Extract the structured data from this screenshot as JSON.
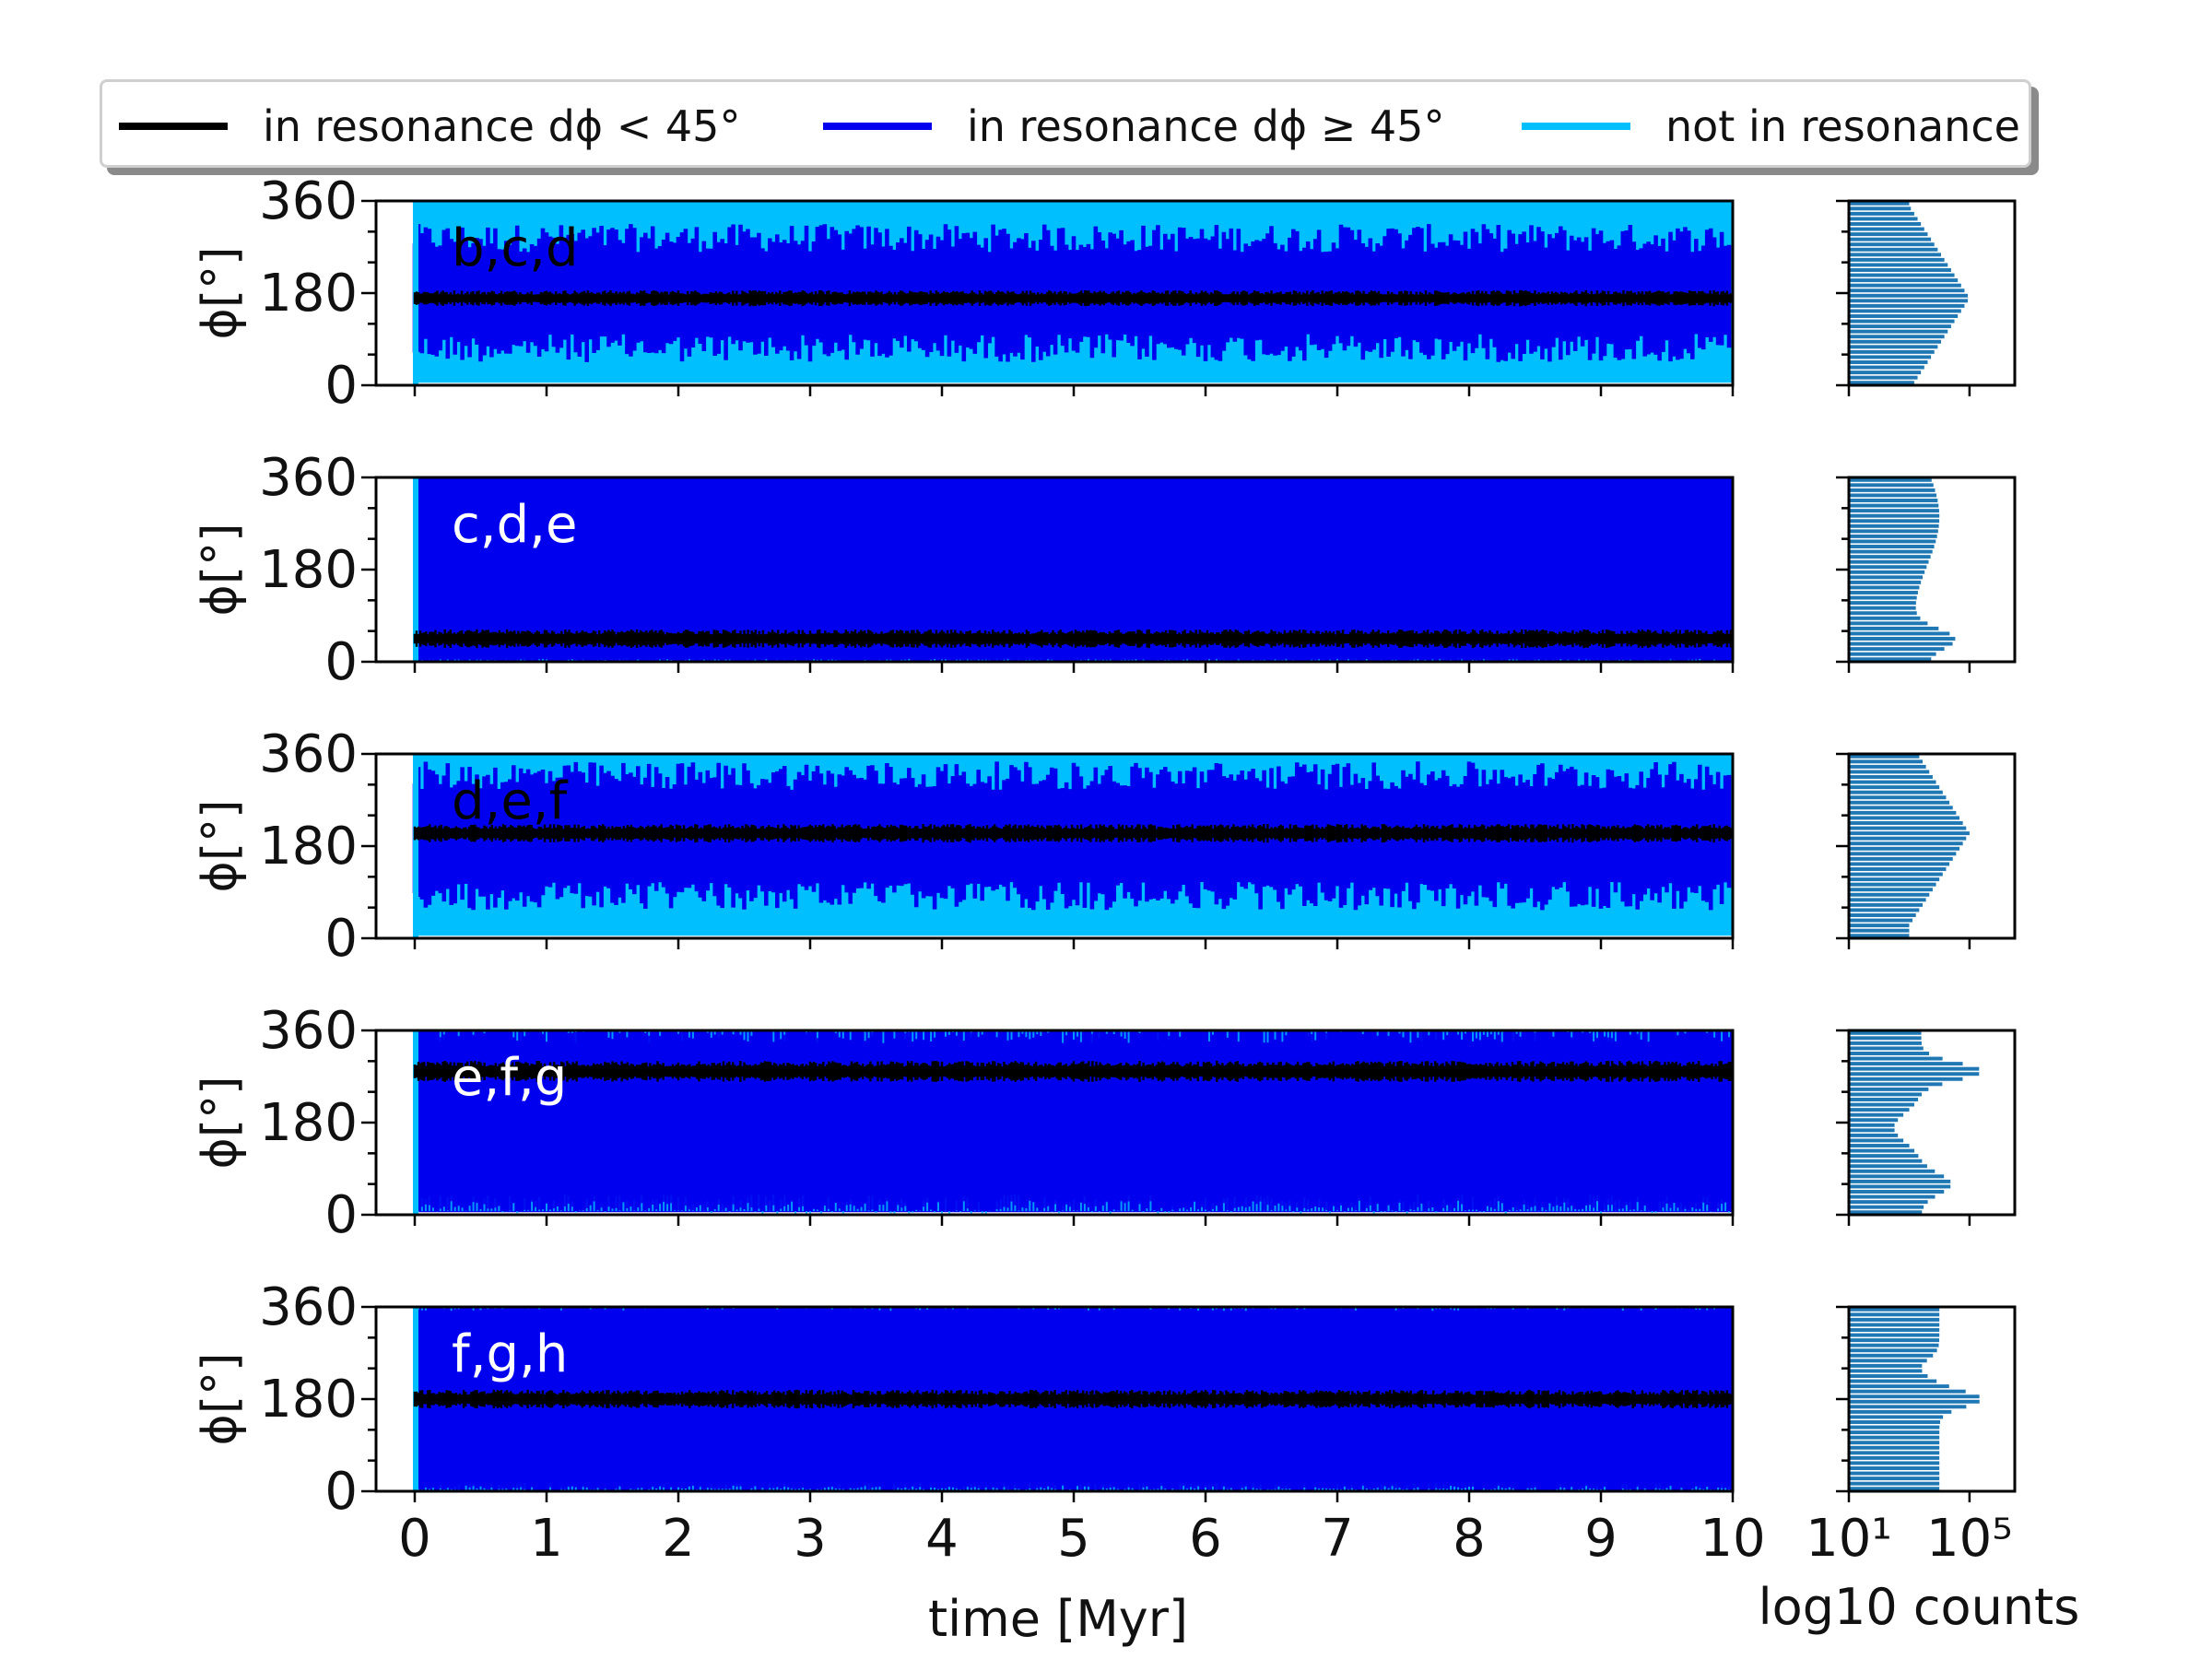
{
  "legend": {
    "items": [
      {
        "label": "in resonance dϕ < 45°",
        "color": "#000000"
      },
      {
        "label": "in resonance dϕ ≥ 45°",
        "color": "#0000ee"
      },
      {
        "label": "not in resonance",
        "color": "#00bfff"
      }
    ]
  },
  "chart_data": {
    "type": "line",
    "xlabel": "time [Myr]",
    "ylabel": "ϕ[°]",
    "xlim": [
      0,
      10
    ],
    "ylim": [
      0,
      360
    ],
    "xticks": [
      "0",
      "1",
      "2",
      "3",
      "4",
      "5",
      "6",
      "7",
      "8",
      "9",
      "10"
    ],
    "yticks": [
      "0",
      "180",
      "360"
    ],
    "hist_xlabel": "log10 counts",
    "hist_xticks": [
      "10¹",
      "10⁵"
    ],
    "hist_xscale": "log",
    "colors": {
      "in_resonance_small": "#000000",
      "in_resonance_large": "#0000ee",
      "not_in_resonance": "#00bfff",
      "histogram": "#1f77b4"
    },
    "panels": [
      {
        "label": "b,c,d",
        "label_color": "#000000",
        "center": 170,
        "black_halfwidth": 12,
        "blue_low": 100,
        "blue_high": 260,
        "cyan_low": 5,
        "cyan_high": 360,
        "background": "cyan"
      },
      {
        "label": "c,d,e",
        "label_color": "#ffffff",
        "center": 45,
        "black_halfwidth": 14,
        "blue_low": 5,
        "blue_high": 360,
        "cyan_low": 0,
        "cyan_high": 360,
        "background": "blue"
      },
      {
        "label": "d,e,f",
        "label_color": "#000000",
        "center": 205,
        "black_halfwidth": 14,
        "blue_low": 110,
        "blue_high": 290,
        "cyan_low": 5,
        "cyan_high": 360,
        "background": "cyan"
      },
      {
        "label": "e,f,g",
        "label_color": "#ffffff",
        "center": 280,
        "black_halfwidth": 16,
        "blue_low": 25,
        "blue_high": 310,
        "cyan_low": 5,
        "cyan_high": 360,
        "background": "blue"
      },
      {
        "label": "f,g,h",
        "label_color": "#ffffff",
        "center": 180,
        "black_halfwidth": 14,
        "blue_low": 10,
        "blue_high": 345,
        "cyan_low": 0,
        "cyan_high": 360,
        "background": "blue"
      }
    ]
  }
}
